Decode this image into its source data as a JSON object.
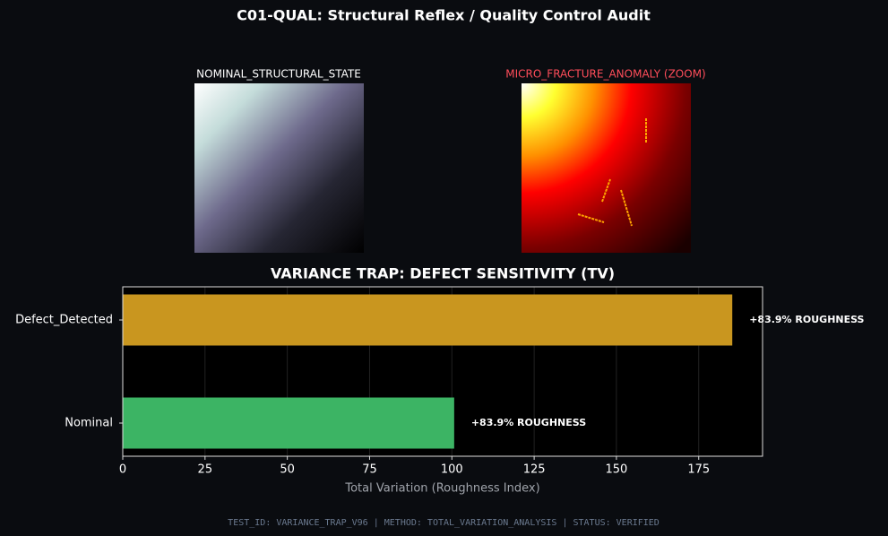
{
  "title": "C01-QUAL: Structural Reflex / Quality Control Audit",
  "panels": [
    {
      "label": "NOMINAL_STRUCTURAL_STATE"
    },
    {
      "label": "MICRO_FRACTURE_ANOMALY (ZOOM)"
    }
  ],
  "chart_data": {
    "type": "barh",
    "title": "VARIANCE TRAP: DEFECT SENSITIVITY (TV)",
    "categories": [
      "Nominal",
      "Defect_Detected"
    ],
    "values": [
      100.7,
      185.2
    ],
    "colors": [
      "#3cb464",
      "#c9961f"
    ],
    "annotations": [
      "+83.9% ROUGHNESS",
      "+83.9% ROUGHNESS"
    ],
    "xlabel": "Total Variation (Roughness Index)",
    "xlim": [
      0,
      194.4
    ],
    "xticks": [
      0,
      25,
      50,
      75,
      100,
      125,
      150,
      175
    ],
    "grid": true
  },
  "footer": "TEST_ID: VARIANCE_TRAP_V96 | METHOD: TOTAL_VARIATION_ANALYSIS | STATUS: VERIFIED"
}
